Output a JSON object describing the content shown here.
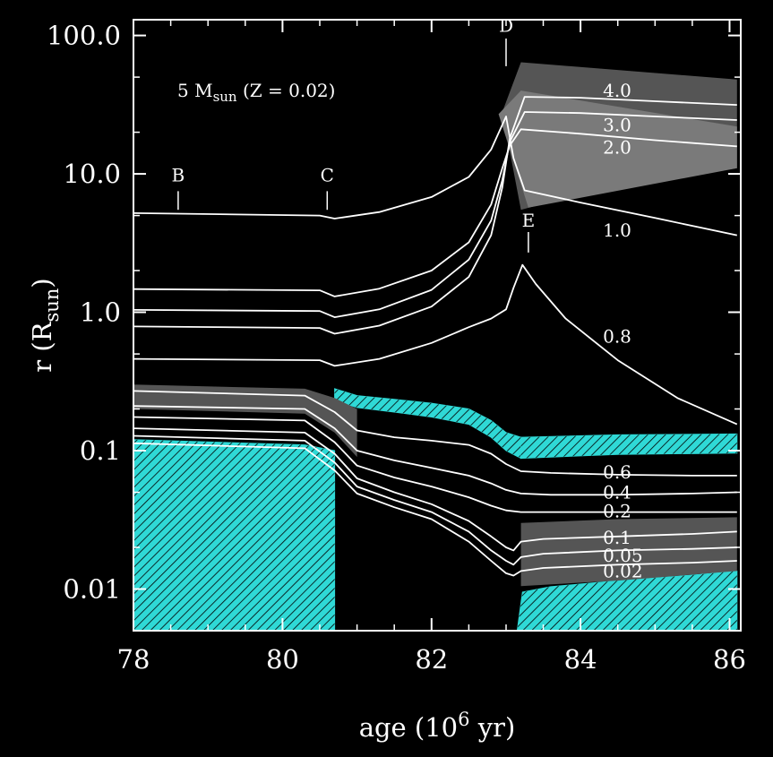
{
  "chart_data": {
    "type": "line",
    "annotation": {
      "main": "5 M",
      "sub": "sun",
      "rest": " (Z = 0.02)"
    },
    "xlabel": {
      "main": "age (10",
      "sup": "6",
      "rest": " yr)"
    },
    "ylabel": {
      "main": "r (R",
      "sub": "sun",
      "rest": ")"
    },
    "xlim": [
      78,
      86.15
    ],
    "ylim": [
      0.005,
      130
    ],
    "yscale": "log",
    "xticks": [
      78,
      80,
      82,
      84,
      86
    ],
    "xtick_labels": [
      "78",
      "80",
      "82",
      "84",
      "86"
    ],
    "yticks": [
      0.01,
      0.1,
      1,
      10,
      100
    ],
    "ytick_labels": [
      "0.01",
      "0.1",
      "1.0",
      "10.0",
      "100.0"
    ],
    "phase_markers": [
      {
        "label": "B",
        "x": 78.6,
        "tick_y": [
          7.5,
          5.5
        ],
        "label_y": 9.8
      },
      {
        "label": "C",
        "x": 80.6,
        "tick_y": [
          7.5,
          5.5
        ],
        "label_y": 9.8
      },
      {
        "label": "D",
        "x": 83.0,
        "tick_y": [
          95,
          60
        ],
        "label_y": 118
      },
      {
        "label": "E",
        "x": 83.3,
        "tick_y": [
          3.8,
          2.7
        ],
        "label_y": 4.6
      }
    ],
    "colors": {
      "background": "#000000",
      "lines": "#ffffff",
      "convective": "#2fd9d6",
      "hatch": "#000000",
      "grey_region": "#555555",
      "light_region": "#7a7a7a"
    },
    "series": [
      {
        "name": "1.0",
        "x": [
          78,
          80.5,
          80.7,
          81.3,
          82.0,
          82.5,
          82.8,
          83.0,
          83.1,
          83.25,
          84.0,
          85.0,
          86.1
        ],
        "y": [
          5.2,
          5.0,
          4.75,
          5.3,
          6.8,
          9.5,
          15,
          26,
          13,
          7.6,
          6.2,
          4.8,
          3.6
        ]
      },
      {
        "name": "2.0",
        "x": [
          78,
          80.5,
          80.7,
          81.3,
          82.0,
          82.5,
          82.8,
          82.95,
          83.05,
          83.2,
          84.0,
          85.0,
          86.1
        ],
        "y": [
          1.47,
          1.44,
          1.3,
          1.48,
          2.0,
          3.2,
          6.0,
          11,
          16,
          21,
          19.5,
          17.5,
          15.8
        ]
      },
      {
        "name": "3.0",
        "x": [
          78,
          80.5,
          80.7,
          81.3,
          82.0,
          82.5,
          82.8,
          82.95,
          83.05,
          83.25,
          84.0,
          85.0,
          86.1
        ],
        "y": [
          1.04,
          1.02,
          0.92,
          1.05,
          1.45,
          2.4,
          4.6,
          9,
          17,
          28,
          27.5,
          26,
          24.5
        ]
      },
      {
        "name": "4.0",
        "x": [
          78,
          80.5,
          80.7,
          81.3,
          82.0,
          82.5,
          82.8,
          82.95,
          83.05,
          83.25,
          84.0,
          85.0,
          86.1
        ],
        "y": [
          0.79,
          0.77,
          0.7,
          0.8,
          1.1,
          1.8,
          3.6,
          8,
          18,
          36,
          35.5,
          33.5,
          31.5
        ]
      },
      {
        "name": "0.8",
        "x": [
          78,
          80.5,
          80.7,
          81.3,
          82.0,
          82.5,
          82.8,
          83.0,
          83.1,
          83.22,
          83.4,
          83.8,
          84.5,
          85.3,
          86.1
        ],
        "y": [
          0.46,
          0.45,
          0.41,
          0.46,
          0.6,
          0.78,
          0.9,
          1.05,
          1.5,
          2.2,
          1.6,
          0.9,
          0.45,
          0.24,
          0.155
        ]
      },
      {
        "name": "0.6",
        "x": [
          78,
          80.3,
          80.7,
          81.0,
          81.5,
          82.0,
          82.5,
          82.8,
          83.0,
          83.2,
          83.6,
          84.5,
          85.5,
          86.1
        ],
        "y": [
          0.27,
          0.25,
          0.19,
          0.14,
          0.125,
          0.118,
          0.11,
          0.095,
          0.08,
          0.071,
          0.069,
          0.067,
          0.066,
          0.066
        ]
      },
      {
        "name": "0.4",
        "x": [
          78,
          80.3,
          80.7,
          81.0,
          81.5,
          82.0,
          82.5,
          82.8,
          83.0,
          83.2,
          83.6,
          84.5,
          85.5,
          86.1
        ],
        "y": [
          0.21,
          0.2,
          0.145,
          0.1,
          0.085,
          0.075,
          0.066,
          0.058,
          0.052,
          0.049,
          0.048,
          0.048,
          0.049,
          0.05
        ]
      },
      {
        "name": "0.2",
        "x": [
          78,
          80.3,
          80.7,
          81.0,
          81.5,
          82.0,
          82.5,
          82.8,
          83.0,
          83.2,
          83.6,
          84.5,
          85.5,
          86.1
        ],
        "y": [
          0.175,
          0.165,
          0.115,
          0.078,
          0.064,
          0.055,
          0.046,
          0.04,
          0.037,
          0.036,
          0.036,
          0.036,
          0.036,
          0.036
        ]
      },
      {
        "name": "0.1",
        "x": [
          78,
          80.3,
          80.7,
          81.0,
          81.5,
          82.0,
          82.5,
          82.8,
          83.0,
          83.1,
          83.2,
          83.5,
          84.5,
          85.5,
          86.1
        ],
        "y": [
          0.145,
          0.135,
          0.095,
          0.063,
          0.05,
          0.041,
          0.031,
          0.024,
          0.02,
          0.019,
          0.022,
          0.023,
          0.024,
          0.025,
          0.026
        ]
      },
      {
        "name": "0.05",
        "x": [
          78,
          80.3,
          80.7,
          81.0,
          81.5,
          82.0,
          82.5,
          82.8,
          83.0,
          83.1,
          83.2,
          83.5,
          84.5,
          85.5,
          86.1
        ],
        "y": [
          0.128,
          0.118,
          0.082,
          0.055,
          0.044,
          0.036,
          0.026,
          0.019,
          0.016,
          0.015,
          0.017,
          0.018,
          0.019,
          0.0195,
          0.02
        ]
      },
      {
        "name": "0.02",
        "x": [
          78,
          80.3,
          80.7,
          81.0,
          81.5,
          82.0,
          82.5,
          82.8,
          83.0,
          83.1,
          83.2,
          83.5,
          84.5,
          85.5,
          86.1
        ],
        "y": [
          0.113,
          0.104,
          0.072,
          0.049,
          0.039,
          0.032,
          0.022,
          0.016,
          0.013,
          0.0125,
          0.0135,
          0.0142,
          0.015,
          0.0155,
          0.016
        ]
      }
    ],
    "series_labels": [
      {
        "text": "4.0",
        "x": 84.3,
        "y": 40
      },
      {
        "text": "3.0",
        "x": 84.3,
        "y": 22.5
      },
      {
        "text": "2.0",
        "x": 84.3,
        "y": 15.5
      },
      {
        "text": "1.0",
        "x": 84.3,
        "y": 3.9
      },
      {
        "text": "0.8",
        "x": 84.3,
        "y": 0.67
      },
      {
        "text": "0.6",
        "x": 84.3,
        "y": 0.07
      },
      {
        "text": "0.4",
        "x": 84.3,
        "y": 0.05
      },
      {
        "text": "0.2",
        "x": 84.3,
        "y": 0.0365
      },
      {
        "text": "0.1",
        "x": 84.3,
        "y": 0.0235
      },
      {
        "text": "0.05",
        "x": 84.3,
        "y": 0.0175
      },
      {
        "text": "0.02",
        "x": 84.3,
        "y": 0.0135
      }
    ],
    "regions": [
      {
        "name": "convective-core-left",
        "style": "convective",
        "x": [
          78,
          80.3,
          80.7,
          80.7,
          78
        ],
        "y": [
          0.12,
          0.11,
          0.1,
          0.005,
          0.005
        ]
      },
      {
        "name": "convective-shell-middle",
        "style": "convective",
        "upper": {
          "x": [
            80.7,
            81.0,
            81.5,
            82.0,
            82.5,
            82.8,
            83.0,
            83.2
          ],
          "y": [
            0.28,
            0.25,
            0.235,
            0.22,
            0.2,
            0.165,
            0.135,
            0.125
          ]
        },
        "lower": {
          "x": [
            80.7,
            81.0,
            81.5,
            82.0,
            82.5,
            82.8,
            83.0,
            83.2
          ],
          "y": [
            0.23,
            0.205,
            0.19,
            0.175,
            0.155,
            0.125,
            0.1,
            0.088
          ]
        }
      },
      {
        "name": "convective-shell-right",
        "style": "convective",
        "upper": {
          "x": [
            83.2,
            84.5,
            86.1
          ],
          "y": [
            0.125,
            0.13,
            0.132
          ]
        },
        "lower": {
          "x": [
            83.2,
            84.5,
            86.1
          ],
          "y": [
            0.088,
            0.094,
            0.096
          ]
        }
      },
      {
        "name": "convective-core-right",
        "style": "convective",
        "x": [
          83.15,
          83.22,
          83.6,
          84.5,
          85.5,
          86.1,
          86.1,
          83.15
        ],
        "y": [
          0.005,
          0.0095,
          0.0104,
          0.0115,
          0.0126,
          0.0135,
          0.005,
          0.005
        ]
      },
      {
        "name": "grey-band-left",
        "style": "grey",
        "upper": {
          "x": [
            78,
            80.3,
            80.7,
            81.0
          ],
          "y": [
            0.3,
            0.28,
            0.24,
            0.2
          ]
        },
        "lower": {
          "x": [
            78,
            80.3,
            80.7,
            81.0
          ],
          "y": [
            0.2,
            0.185,
            0.135,
            0.09
          ]
        }
      },
      {
        "name": "grey-band-right",
        "style": "grey",
        "upper": {
          "x": [
            83.2,
            84.5,
            86.1
          ],
          "y": [
            0.03,
            0.032,
            0.033
          ]
        },
        "lower": {
          "x": [
            83.2,
            84.5,
            86.1
          ],
          "y": [
            0.0105,
            0.0115,
            0.0135
          ]
        }
      },
      {
        "name": "grey-envelope-top",
        "style": "grey",
        "x": [
          82.95,
          83.2,
          86.1,
          86.1,
          84.0,
          83.2
        ],
        "y": [
          28,
          64,
          48,
          11,
          7.2,
          5.5
        ]
      },
      {
        "name": "light-envelope",
        "style": "light",
        "x": [
          82.9,
          83.2,
          86.1,
          86.1,
          83.3
        ],
        "y": [
          27,
          40,
          22,
          11,
          5.7
        ]
      }
    ]
  }
}
